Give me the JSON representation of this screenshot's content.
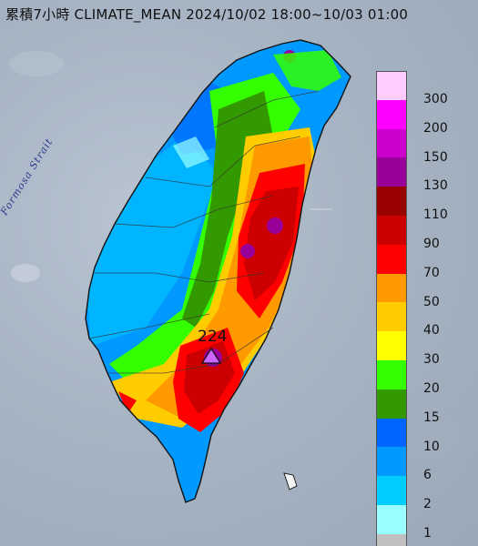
{
  "title": "累積7小時 CLIMATE_MEAN 2024/10/02 18:00~10/03 01:00",
  "strait_label": "Formosa Strait",
  "max_marker": {
    "value": "224",
    "symbol": "triangle-marker"
  },
  "legend": {
    "colors": [
      "#ffccff",
      "#ff00ff",
      "#cc00cc",
      "#990099",
      "#990000",
      "#cc0000",
      "#ff0000",
      "#ff9900",
      "#ffcc00",
      "#ffff00",
      "#33ff00",
      "#339900",
      "#0066ff",
      "#0099ff",
      "#00ccff",
      "#99ffff",
      "#c0c0c0"
    ],
    "ticks": [
      "300",
      "200",
      "150",
      "130",
      "110",
      "90",
      "70",
      "50",
      "40",
      "30",
      "20",
      "15",
      "10",
      "6",
      "2",
      "1"
    ]
  }
}
